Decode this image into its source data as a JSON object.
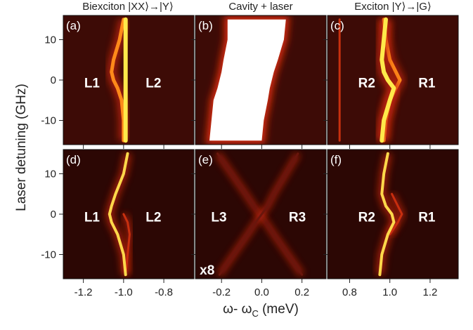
{
  "column_titles": [
    "Biexciton |XX⟩→|Y⟩",
    "Cavity + laser",
    "Exciton |Y⟩→|G⟩"
  ],
  "ylabel": "Laser detuning (GHz)",
  "xlabel": {
    "main": "ω- ω",
    "sub": "C",
    "unit": " (meV)"
  },
  "chart_data": [
    {
      "type": "heatmap",
      "label": "(a)",
      "annotations": [
        "L1",
        "L2"
      ],
      "background": "#3d0b06",
      "xlim": [
        -1.3,
        -0.65
      ],
      "ylim": [
        -16,
        16
      ],
      "xticks": [
        -1.2,
        {
          "value": -1.0,
          "label": "-1.0"
        },
        -0.8
      ],
      "yticks": [
        -10,
        0,
        10
      ],
      "y": [
        15,
        10,
        5,
        2,
        0,
        -2,
        -5,
        -10,
        -15
      ],
      "traces": [
        {
          "color": "#ff8a1a",
          "width": 5,
          "x": [
            -1.0,
            -1.02,
            -1.05,
            -1.06,
            -1.05,
            -1.03,
            -1.01,
            -1.0,
            -1.0
          ]
        },
        {
          "color": "#ffe94a",
          "width": 6,
          "x": [
            -0.99,
            -0.99,
            -0.99,
            -0.99,
            -0.99,
            -0.99,
            -0.99,
            -0.99,
            -0.99
          ]
        }
      ]
    },
    {
      "type": "heatmap",
      "label": "(b)",
      "annotations": [],
      "background": "#3d0b06",
      "xlim": [
        -0.33,
        0.32
      ],
      "ylim": [
        -16,
        16
      ],
      "xticks": [
        -0.2,
        {
          "value": 0,
          "label": "0.0"
        },
        0.2
      ],
      "yticks": [
        -10,
        0,
        10
      ],
      "y": [
        15,
        10,
        5,
        2,
        0,
        -2,
        -5,
        -10,
        -15
      ],
      "traces": [
        {
          "color": "#ffffff",
          "width": 0,
          "x": [
            -0.17,
            -0.17,
            -0.19,
            -0.2,
            -0.21,
            -0.22,
            -0.24,
            -0.25,
            -0.26
          ],
          "x2": [
            0.12,
            0.11,
            0.08,
            0.06,
            0.05,
            0.04,
            0.03,
            0.01,
            0.0
          ]
        }
      ]
    },
    {
      "type": "heatmap",
      "label": "(c)",
      "annotations": [
        "R2",
        "R1"
      ],
      "background": "#3d0b06",
      "xlim": [
        0.69,
        1.34
      ],
      "ylim": [
        -16,
        16
      ],
      "xticks": [
        0.8,
        {
          "value": 1.0,
          "label": "1.0"
        },
        1.2
      ],
      "yticks": [
        -10,
        0,
        10
      ],
      "y": [
        15,
        10,
        5,
        2,
        0,
        -2,
        -5,
        -10,
        -15
      ],
      "traces": [
        {
          "color": "#c8300f",
          "width": 3,
          "x": [
            0.75,
            0.75,
            0.75,
            0.75,
            0.75,
            0.75,
            0.75,
            0.75,
            0.75
          ]
        },
        {
          "color": "#ff8a1a",
          "width": 5,
          "x": [
            0.97,
            0.98,
            1.0,
            1.03,
            1.05,
            1.03,
            1.0,
            0.98,
            0.97
          ]
        },
        {
          "color": "#ffe94a",
          "width": 6,
          "x": [
            0.98,
            0.97,
            0.96,
            0.97,
            0.99,
            1.02,
            1.0,
            0.97,
            0.96
          ]
        }
      ]
    },
    {
      "type": "heatmap",
      "label": "(d)",
      "annotations": [
        "L1",
        "L2"
      ],
      "background": "#2c0704",
      "xlim": [
        -1.3,
        -0.65
      ],
      "ylim": [
        -16,
        16
      ],
      "xticks": [
        -1.2,
        {
          "value": -1.0,
          "label": "-1.0"
        },
        -0.8
      ],
      "yticks": [
        -10,
        0,
        10
      ],
      "y": [
        15,
        10,
        5,
        2,
        0,
        -2,
        -5,
        -10,
        -15
      ],
      "traces": [
        {
          "color": "#c8300f",
          "width": 3,
          "x": [
            null,
            null,
            null,
            null,
            -1.0,
            -0.98,
            -0.97,
            -0.98,
            -0.99
          ]
        },
        {
          "color": "#ffd84a",
          "width": 4,
          "x": [
            -0.98,
            -1.0,
            -1.04,
            -1.06,
            -1.07,
            -1.06,
            -1.03,
            -1.0,
            -0.99
          ]
        }
      ]
    },
    {
      "type": "heatmap",
      "label": "(e)",
      "annotations": [
        "L3",
        "R3",
        "x8"
      ],
      "background": "#2c0704",
      "xlim": [
        -0.33,
        0.32
      ],
      "ylim": [
        -16,
        16
      ],
      "xticks": [
        -0.2,
        {
          "value": 0,
          "label": "0.0"
        },
        0.2
      ],
      "yticks": [
        -10,
        0,
        10
      ],
      "y": [
        15,
        10,
        5,
        2,
        0,
        -2,
        -5,
        -10,
        -15
      ],
      "traces": [
        {
          "color": "#6a160c",
          "width": 3,
          "x": [
            -0.22,
            -0.15,
            -0.08,
            -0.04,
            -0.01,
            0.02,
            0.06,
            0.13,
            0.2
          ]
        },
        {
          "color": "#6a160c",
          "width": 3,
          "x": [
            0.18,
            0.12,
            0.06,
            0.03,
            0.0,
            -0.03,
            -0.07,
            -0.14,
            -0.21
          ]
        }
      ]
    },
    {
      "type": "heatmap",
      "label": "(f)",
      "annotations": [
        "R2",
        "R1"
      ],
      "background": "#2c0704",
      "xlim": [
        0.69,
        1.34
      ],
      "ylim": [
        -16,
        16
      ],
      "xticks": [
        0.8,
        {
          "value": 1.0,
          "label": "1.0"
        },
        1.2
      ],
      "yticks": [
        -10,
        0,
        10
      ],
      "y": [
        15,
        10,
        5,
        2,
        0,
        -2,
        -5,
        -10,
        -15
      ],
      "traces": [
        {
          "color": "#c8300f",
          "width": 3,
          "x": [
            null,
            null,
            1.01,
            1.04,
            1.06,
            1.04,
            1.0,
            null,
            null
          ]
        },
        {
          "color": "#ffd84a",
          "width": 4,
          "x": [
            0.99,
            0.97,
            0.96,
            0.98,
            1.01,
            1.02,
            0.99,
            0.96,
            0.95
          ]
        }
      ]
    }
  ]
}
